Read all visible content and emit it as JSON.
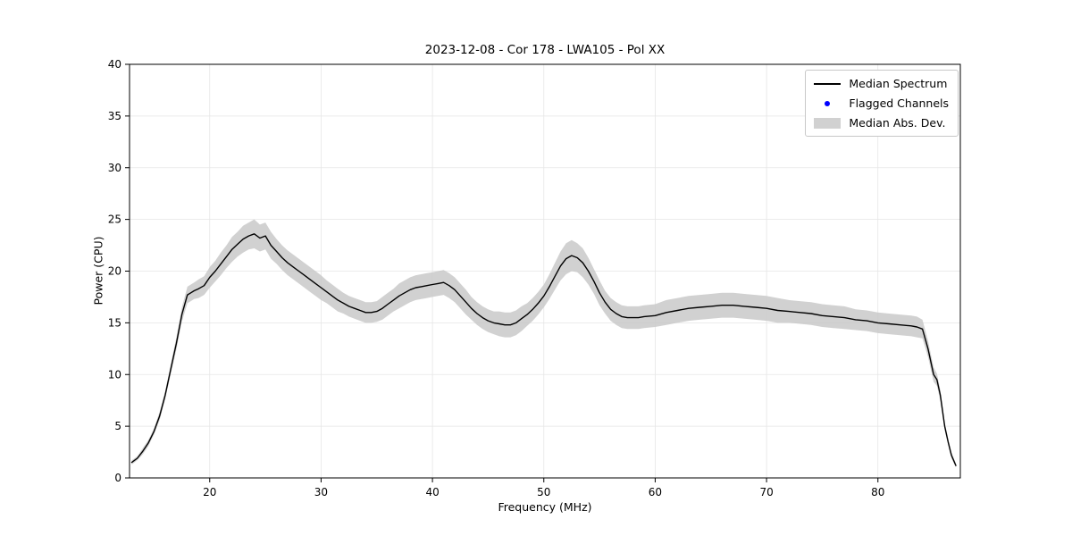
{
  "chart_data": {
    "type": "line",
    "title": "2023-12-08 - Cor 178 - LWA105 - Pol XX",
    "xlabel": "Frequency (MHz)",
    "ylabel": "Power (CPU)",
    "xlim": [
      12.8,
      87.4
    ],
    "ylim": [
      0,
      40
    ],
    "xticks": [
      20,
      30,
      40,
      50,
      60,
      70,
      80
    ],
    "yticks": [
      0,
      5,
      10,
      15,
      20,
      25,
      30,
      35,
      40
    ],
    "grid": true,
    "legend_position": "upper right",
    "legend": [
      "Median Spectrum",
      "Flagged Channels",
      "Median Abs. Dev."
    ],
    "colors": {
      "line": "#000000",
      "flagged": "#0000ff",
      "band": "#c9c9c9"
    },
    "x": [
      13,
      13.5,
      14,
      14.5,
      15,
      15.5,
      16,
      16.5,
      17,
      17.5,
      18,
      18.3,
      18.6,
      19,
      19.5,
      20,
      20.5,
      21,
      21.5,
      22,
      22.5,
      23,
      23.5,
      24,
      24.5,
      25,
      25.5,
      26,
      26.5,
      27,
      27.5,
      28,
      28.5,
      29,
      29.5,
      30,
      30.5,
      31,
      31.5,
      32,
      32.5,
      33,
      33.5,
      34,
      34.5,
      35,
      35.5,
      36,
      36.5,
      37,
      37.5,
      38,
      38.5,
      39,
      39.5,
      40,
      40.5,
      41,
      41.5,
      42,
      42.5,
      43,
      43.5,
      44,
      44.5,
      45,
      45.5,
      46,
      46.5,
      47,
      47.5,
      48,
      48.5,
      49,
      49.5,
      50,
      50.5,
      51,
      51.5,
      52,
      52.5,
      53,
      53.5,
      54,
      54.5,
      55,
      55.5,
      56,
      56.5,
      57,
      57.5,
      58,
      58.5,
      59,
      60,
      61,
      62,
      63,
      64,
      65,
      66,
      67,
      68,
      69,
      70,
      71,
      72,
      73,
      74,
      75,
      76,
      77,
      78,
      79,
      80,
      81,
      82,
      83,
      83.5,
      84,
      84.5,
      85,
      85.3,
      85.6,
      86,
      86.3,
      86.6,
      87
    ],
    "median": [
      1.5,
      1.9,
      2.6,
      3.4,
      4.5,
      6.0,
      8.0,
      10.5,
      13.0,
      15.8,
      17.7,
      17.9,
      18.1,
      18.3,
      18.6,
      19.4,
      20.0,
      20.7,
      21.4,
      22.1,
      22.6,
      23.1,
      23.4,
      23.6,
      23.2,
      23.4,
      22.5,
      21.9,
      21.3,
      20.8,
      20.4,
      20.0,
      19.6,
      19.2,
      18.8,
      18.4,
      18.0,
      17.6,
      17.2,
      16.9,
      16.6,
      16.4,
      16.2,
      16.0,
      16.0,
      16.1,
      16.4,
      16.8,
      17.2,
      17.6,
      17.9,
      18.2,
      18.4,
      18.5,
      18.6,
      18.7,
      18.8,
      18.9,
      18.6,
      18.2,
      17.6,
      17.0,
      16.4,
      15.9,
      15.5,
      15.2,
      15.0,
      14.9,
      14.8,
      14.8,
      15.0,
      15.4,
      15.8,
      16.3,
      16.9,
      17.6,
      18.5,
      19.5,
      20.5,
      21.2,
      21.5,
      21.3,
      20.8,
      20.0,
      19.0,
      17.9,
      17.0,
      16.3,
      15.9,
      15.6,
      15.5,
      15.5,
      15.5,
      15.6,
      15.7,
      16.0,
      16.2,
      16.4,
      16.5,
      16.6,
      16.7,
      16.7,
      16.6,
      16.5,
      16.4,
      16.2,
      16.1,
      16.0,
      15.9,
      15.7,
      15.6,
      15.5,
      15.3,
      15.2,
      15.0,
      14.9,
      14.8,
      14.7,
      14.6,
      14.4,
      12.5,
      10.0,
      9.5,
      8.0,
      5.0,
      3.5,
      2.2,
      1.2
    ],
    "mad": [
      0.2,
      0.2,
      0.3,
      0.3,
      0.3,
      0.4,
      0.4,
      0.5,
      0.6,
      0.7,
      0.8,
      0.8,
      0.8,
      0.9,
      0.9,
      1.0,
      1.0,
      1.1,
      1.1,
      1.2,
      1.2,
      1.3,
      1.3,
      1.4,
      1.3,
      1.3,
      1.3,
      1.2,
      1.2,
      1.2,
      1.2,
      1.2,
      1.2,
      1.2,
      1.2,
      1.2,
      1.1,
      1.1,
      1.1,
      1.0,
      1.0,
      1.0,
      1.0,
      1.0,
      1.0,
      1.0,
      1.1,
      1.1,
      1.1,
      1.2,
      1.2,
      1.2,
      1.2,
      1.2,
      1.2,
      1.2,
      1.2,
      1.2,
      1.2,
      1.2,
      1.2,
      1.2,
      1.1,
      1.1,
      1.1,
      1.1,
      1.1,
      1.2,
      1.2,
      1.2,
      1.2,
      1.2,
      1.1,
      1.1,
      1.1,
      1.1,
      1.2,
      1.3,
      1.4,
      1.5,
      1.5,
      1.4,
      1.4,
      1.3,
      1.2,
      1.2,
      1.1,
      1.1,
      1.1,
      1.1,
      1.1,
      1.1,
      1.1,
      1.1,
      1.1,
      1.2,
      1.2,
      1.2,
      1.2,
      1.2,
      1.2,
      1.2,
      1.2,
      1.2,
      1.2,
      1.2,
      1.1,
      1.1,
      1.1,
      1.1,
      1.1,
      1.1,
      1.0,
      1.0,
      1.0,
      1.0,
      1.0,
      1.0,
      1.0,
      0.9,
      0.8,
      0.7,
      0.6,
      0.5,
      0.4,
      0.3,
      0.3,
      0.2
    ],
    "flagged": {
      "x": [],
      "y": []
    }
  }
}
